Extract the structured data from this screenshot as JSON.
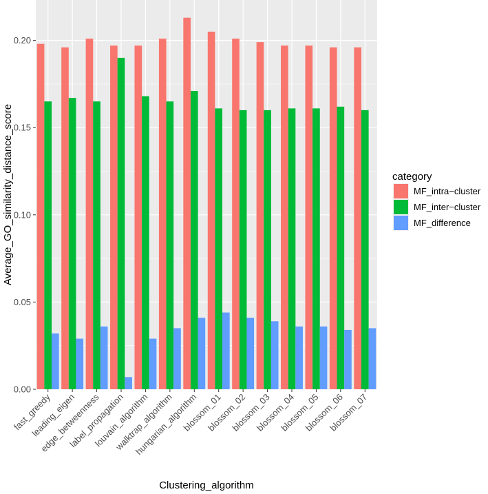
{
  "chart_data": {
    "type": "bar",
    "title": "",
    "xlabel": "Clustering_algorithm",
    "ylabel": "Average_GO_similarity_distance_score",
    "ylim": [
      0,
      0.22
    ],
    "yticks": [
      0.0,
      0.05,
      0.1,
      0.15,
      0.2
    ],
    "ytick_labels": [
      "0.00",
      "0.05",
      "0.10",
      "0.15",
      "0.20"
    ],
    "grid": true,
    "legend_position": "right",
    "legend_title": "category",
    "categories": [
      "fast_greedy",
      "leading_eigen",
      "edge_betweenness",
      "label_propagation",
      "louvain_algorithm",
      "walktrap_algorithm",
      "hungarian_algorithm",
      "blossom_01",
      "blossom_02",
      "blossom_03",
      "blossom_04",
      "blossom_05",
      "blossom_06",
      "blossom_07"
    ],
    "series": [
      {
        "name": "MF_intra−cluster",
        "color": "#F8766D",
        "values": [
          0.198,
          0.196,
          0.201,
          0.197,
          0.197,
          0.201,
          0.213,
          0.205,
          0.201,
          0.199,
          0.197,
          0.197,
          0.196,
          0.196
        ]
      },
      {
        "name": "MF_inter−cluster",
        "color": "#00BA38",
        "values": [
          0.165,
          0.167,
          0.165,
          0.19,
          0.168,
          0.165,
          0.171,
          0.161,
          0.16,
          0.16,
          0.161,
          0.161,
          0.162,
          0.16
        ]
      },
      {
        "name": "MF_difference",
        "color": "#619CFF",
        "values": [
          0.032,
          0.029,
          0.036,
          0.007,
          0.029,
          0.035,
          0.041,
          0.044,
          0.041,
          0.039,
          0.036,
          0.036,
          0.034,
          0.035
        ]
      }
    ]
  }
}
